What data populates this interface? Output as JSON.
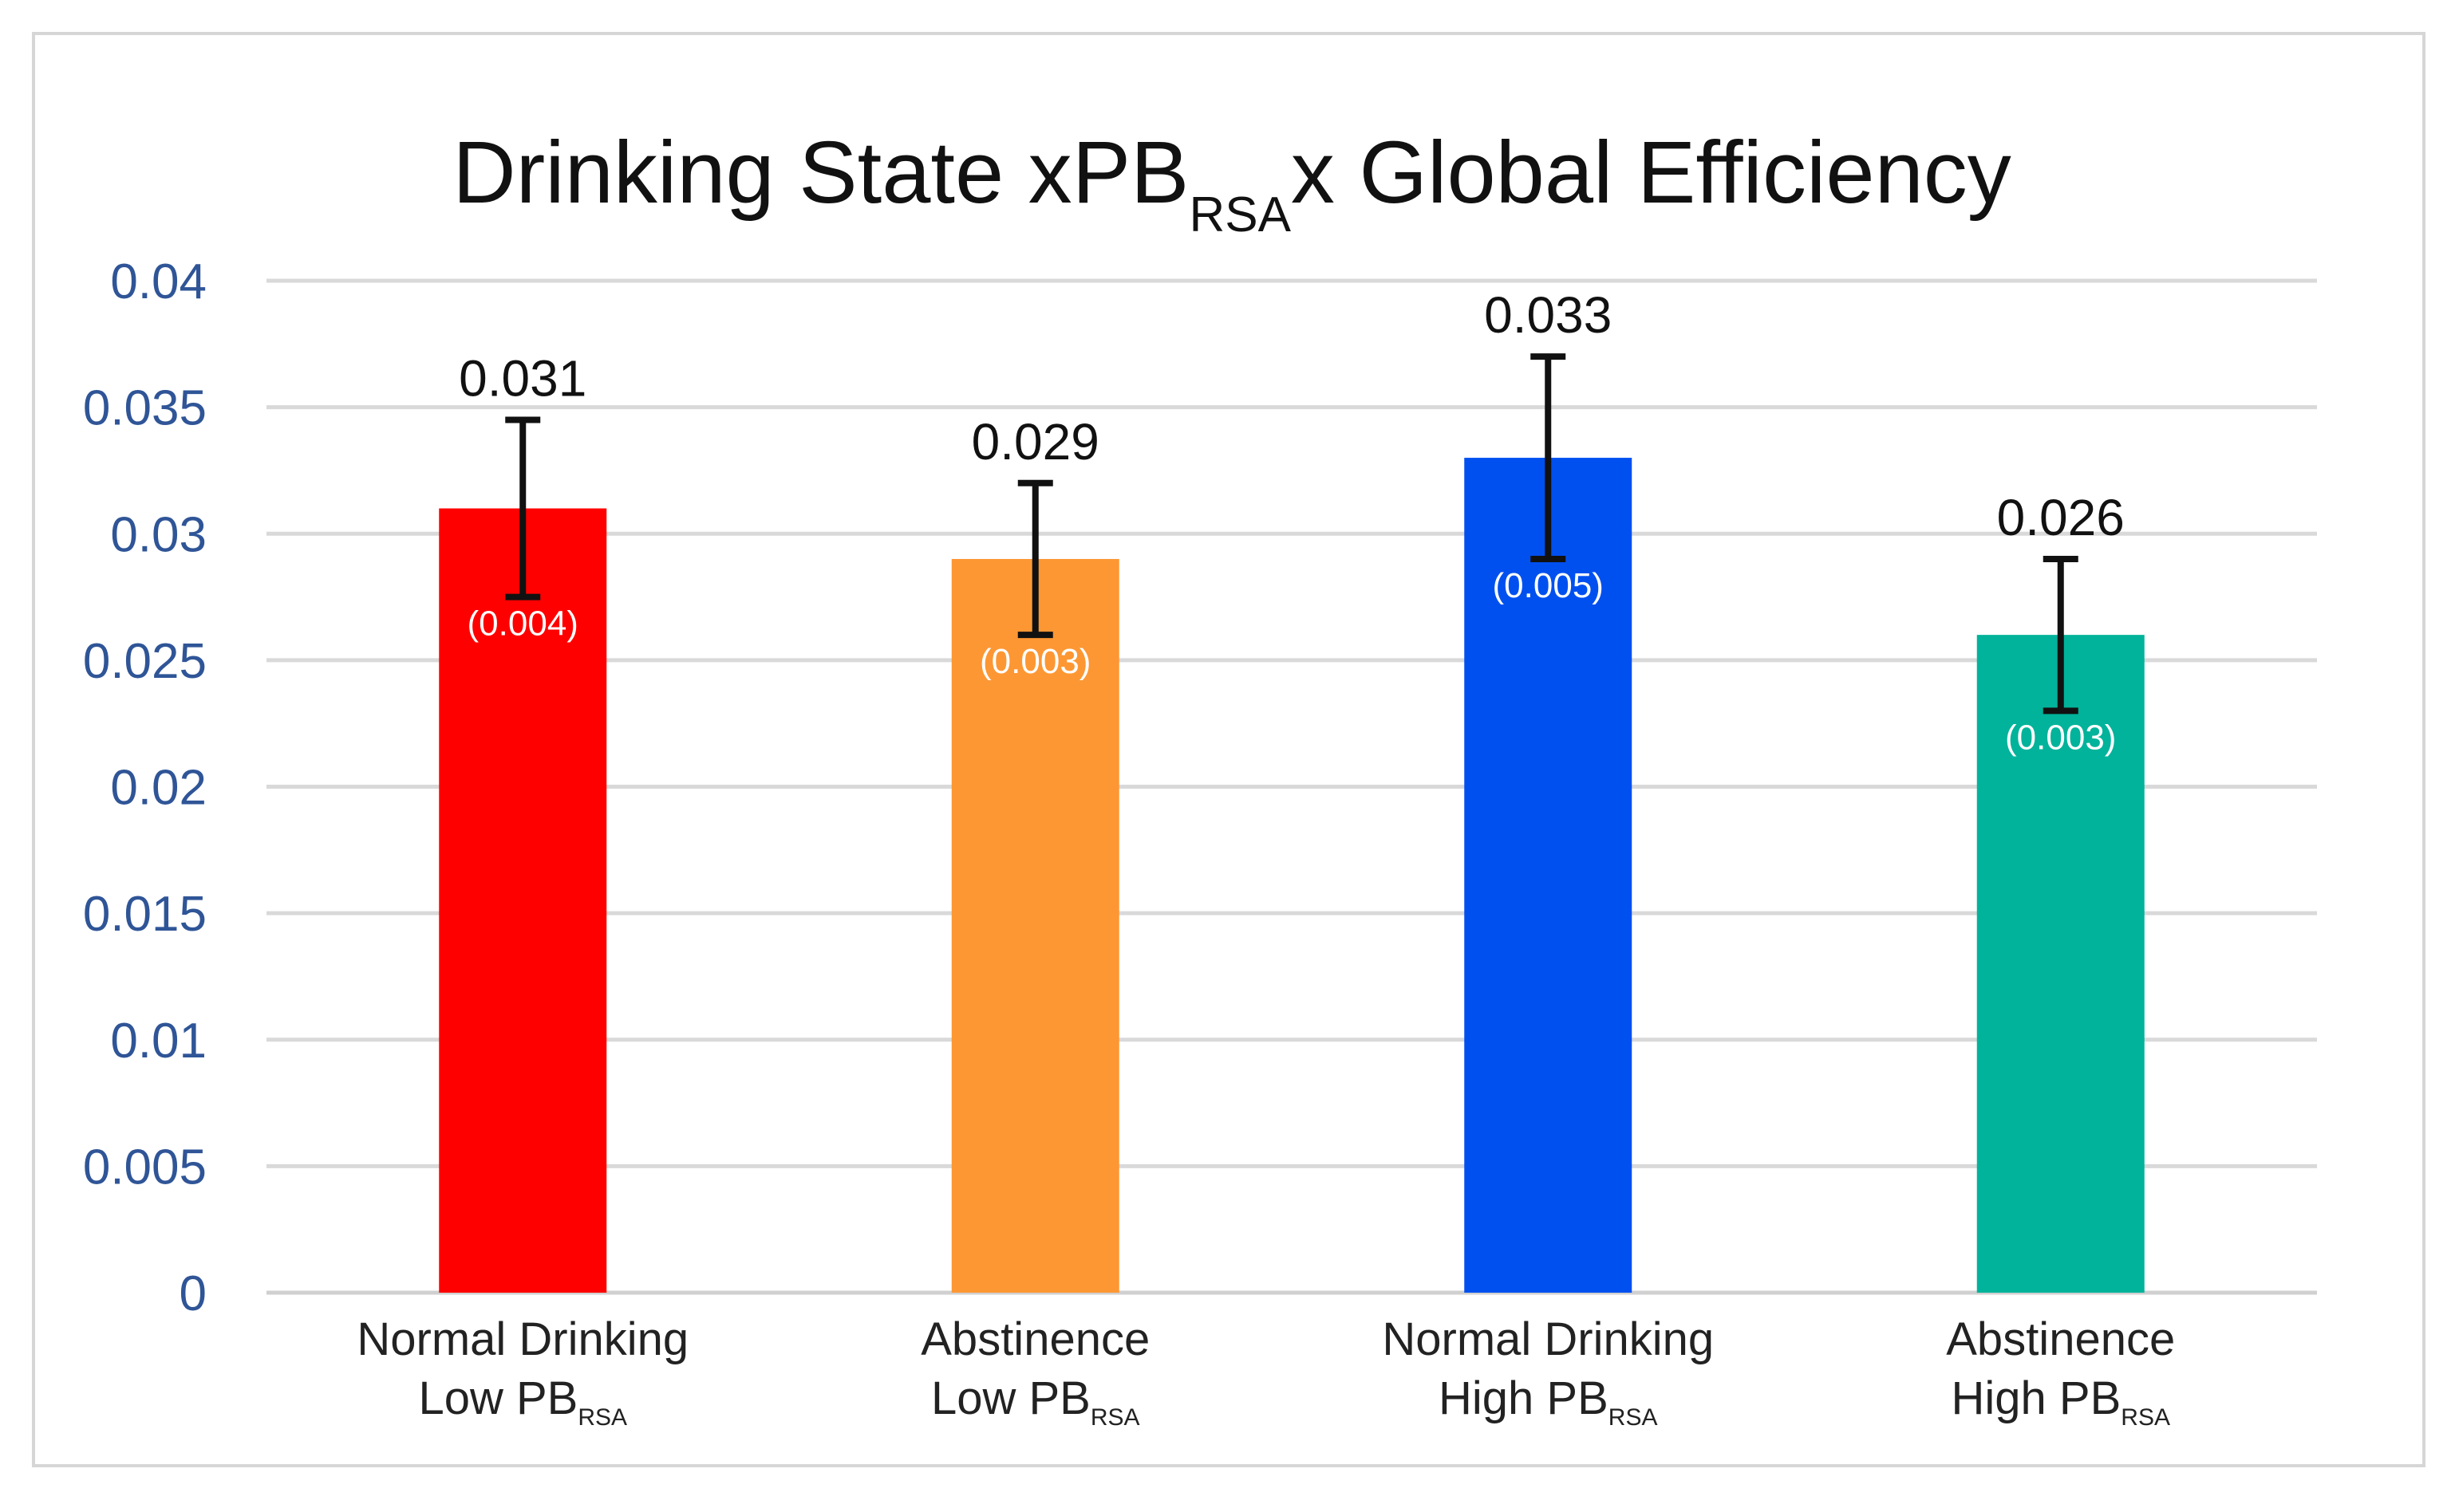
{
  "chart_data": {
    "type": "bar",
    "title": "Drinking State xPBRSAx Global Efficiency",
    "title_parts": [
      {
        "text": "Drinking State x",
        "sub": false
      },
      {
        "text": "PB",
        "sub": false
      },
      {
        "text": "RSA",
        "sub": true
      },
      {
        "text": "x Global Efficiency",
        "sub": false
      }
    ],
    "categories": [
      {
        "line1": "Normal Drinking",
        "line2": "Low PB",
        "line2_sub": "RSA"
      },
      {
        "line1": "Abstinence",
        "line2": "Low PB",
        "line2_sub": "RSA"
      },
      {
        "line1": "Normal Drinking",
        "line2": "High PB",
        "line2_sub": "RSA"
      },
      {
        "line1": "Abstinence",
        "line2": "High PB",
        "line2_sub": "RSA"
      }
    ],
    "values": [
      0.031,
      0.029,
      0.033,
      0.026
    ],
    "value_labels": [
      "0.031",
      "0.029",
      "0.033",
      "0.026"
    ],
    "errors": [
      0.004,
      0.003,
      0.005,
      0.003
    ],
    "error_labels": [
      "(0.004)",
      "(0.003)",
      "(0.005)",
      "(0.003)"
    ],
    "colors": [
      "#ff0000",
      "#fd9733",
      "#0050f0",
      "#00b39a"
    ],
    "yticks": [
      "0",
      "0.005",
      "0.01",
      "0.015",
      "0.02",
      "0.025",
      "0.03",
      "0.035",
      "0.04"
    ],
    "ylim": [
      0,
      0.04
    ],
    "xlabel": "",
    "ylabel": "",
    "grid": true,
    "legend": false
  }
}
